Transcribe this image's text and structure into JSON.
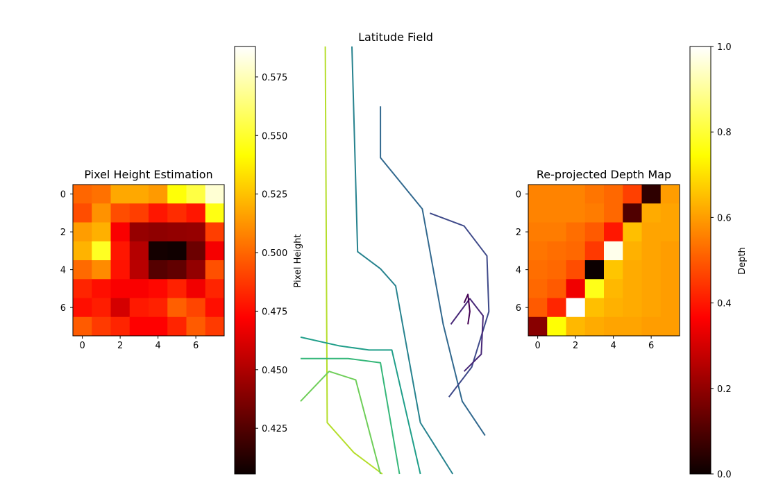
{
  "chart_data": [
    {
      "type": "heatmap",
      "title": "Pixel Height Estimation",
      "colormap": "hot",
      "vmin": 0.4055,
      "vmax": 0.588,
      "x_ticks": [
        "0",
        "2",
        "4",
        "6"
      ],
      "y_ticks": [
        "0",
        "2",
        "4",
        "6"
      ],
      "colorbar": {
        "label": "",
        "ticks": [
          "0.425",
          "0.450",
          "0.475",
          "0.500",
          "0.525",
          "0.550",
          "0.575"
        ]
      },
      "values": [
        [
          0.5,
          0.503,
          0.518,
          0.518,
          0.514,
          0.543,
          0.554,
          0.58
        ],
        [
          0.493,
          0.512,
          0.493,
          0.489,
          0.478,
          0.484,
          0.478,
          0.545
        ],
        [
          0.515,
          0.52,
          0.468,
          0.442,
          0.44,
          0.441,
          0.442,
          0.489
        ],
        [
          0.521,
          0.548,
          0.478,
          0.45,
          0.408,
          0.407,
          0.431,
          0.467
        ],
        [
          0.501,
          0.51,
          0.477,
          0.451,
          0.425,
          0.428,
          0.441,
          0.494
        ],
        [
          0.482,
          0.476,
          0.468,
          0.468,
          0.474,
          0.481,
          0.466,
          0.482
        ],
        [
          0.476,
          0.48,
          0.458,
          0.479,
          0.481,
          0.498,
          0.491,
          0.476
        ],
        [
          0.497,
          0.488,
          0.482,
          0.472,
          0.472,
          0.482,
          0.497,
          0.488
        ]
      ]
    },
    {
      "type": "contour",
      "title": "Latitude Field",
      "ylabel": "Pixel Height",
      "axes_visible": false,
      "colormap": "viridis",
      "levels": [
        {
          "color": "#b5de2b",
          "points": [
            [
              0.13,
              1.0
            ],
            [
              0.14,
              0.12
            ],
            [
              0.28,
              0.05
            ],
            [
              0.43,
              0.0
            ]
          ]
        },
        {
          "color": "#6ece58",
          "points": [
            [
              0.0,
              0.17
            ],
            [
              0.15,
              0.24
            ],
            [
              0.29,
              0.22
            ],
            [
              0.42,
              0.0
            ]
          ]
        },
        {
          "color": "#35b779",
          "points": [
            [
              0.0,
              0.27
            ],
            [
              0.25,
              0.27
            ],
            [
              0.42,
              0.26
            ],
            [
              0.52,
              0.0
            ]
          ]
        },
        {
          "color": "#1f9e89",
          "points": [
            [
              0.0,
              0.32
            ],
            [
              0.2,
              0.3
            ],
            [
              0.36,
              0.29
            ],
            [
              0.48,
              0.29
            ],
            [
              0.63,
              0.0
            ]
          ]
        },
        {
          "color": "#26828e",
          "points": [
            [
              0.27,
              1.0
            ],
            [
              0.3,
              0.52
            ],
            [
              0.42,
              0.48
            ],
            [
              0.5,
              0.44
            ],
            [
              0.63,
              0.12
            ],
            [
              0.8,
              0.0
            ]
          ]
        },
        {
          "color": "#31688e",
          "points": [
            [
              0.42,
              0.86
            ],
            [
              0.42,
              0.74
            ],
            [
              0.64,
              0.62
            ],
            [
              0.75,
              0.35
            ],
            [
              0.85,
              0.17
            ],
            [
              0.97,
              0.09
            ]
          ]
        },
        {
          "color": "#3e4989",
          "points": [
            [
              0.68,
              0.61
            ],
            [
              0.86,
              0.58
            ],
            [
              0.98,
              0.51
            ],
            [
              0.99,
              0.38
            ],
            [
              0.9,
              0.25
            ],
            [
              0.78,
              0.18
            ]
          ]
        },
        {
          "color": "#482878",
          "points": [
            [
              0.79,
              0.35
            ],
            [
              0.89,
              0.41
            ],
            [
              0.96,
              0.37
            ],
            [
              0.95,
              0.28
            ],
            [
              0.86,
              0.24
            ]
          ]
        },
        {
          "color": "#440154",
          "points": [
            [
              0.86,
              0.4
            ],
            [
              0.88,
              0.42
            ],
            [
              0.89,
              0.38
            ],
            [
              0.88,
              0.35
            ]
          ]
        }
      ]
    },
    {
      "type": "heatmap",
      "title": "Re-projected Depth Map",
      "colormap": "hot",
      "vmin": 0.0,
      "vmax": 1.0,
      "x_ticks": [
        "0",
        "2",
        "4",
        "6"
      ],
      "y_ticks": [
        "0",
        "2",
        "4",
        "6"
      ],
      "colorbar": {
        "label": "Depth",
        "ticks": [
          "0.0",
          "0.2",
          "0.4",
          "0.6",
          "0.8",
          "1.0"
        ]
      },
      "values": [
        [
          0.56,
          0.56,
          0.56,
          0.54,
          0.52,
          0.46,
          0.05,
          0.6
        ],
        [
          0.56,
          0.56,
          0.56,
          0.55,
          0.52,
          0.1,
          0.62,
          0.61
        ],
        [
          0.55,
          0.55,
          0.53,
          0.5,
          0.4,
          0.65,
          0.61,
          0.61
        ],
        [
          0.54,
          0.53,
          0.52,
          0.45,
          0.98,
          0.63,
          0.61,
          0.6
        ],
        [
          0.53,
          0.52,
          0.48,
          0.0,
          0.66,
          0.62,
          0.61,
          0.6
        ],
        [
          0.52,
          0.5,
          0.33,
          0.77,
          0.64,
          0.62,
          0.61,
          0.6
        ],
        [
          0.5,
          0.42,
          1.0,
          0.65,
          0.63,
          0.62,
          0.61,
          0.6
        ],
        [
          0.18,
          0.75,
          0.64,
          0.62,
          0.61,
          0.61,
          0.6,
          0.6
        ]
      ]
    }
  ]
}
